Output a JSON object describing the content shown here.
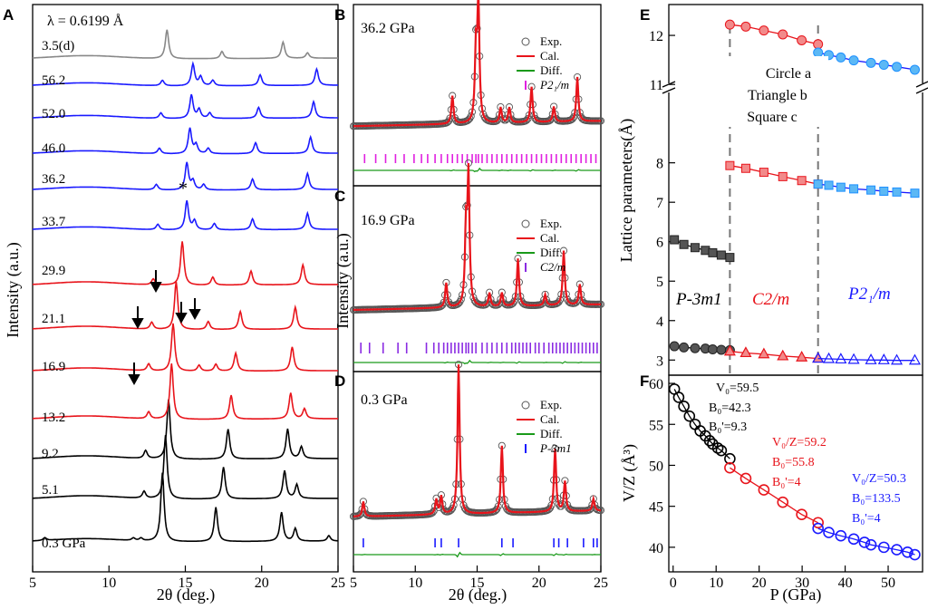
{
  "chart_data": [
    {
      "id": "A",
      "type": "line",
      "panel_label": "A",
      "title": "λ = 0.6199 Å",
      "xlabel": "2θ (deg.)",
      "ylabel": "Intensity (a.u.)",
      "xlim": [
        5,
        25
      ],
      "xticks": [
        5,
        10,
        15,
        20,
        25
      ],
      "series": [
        {
          "name": "0.3 GPa",
          "color": "#000000",
          "peaks": [
            [
              5.8,
              0.15
            ],
            [
              11.6,
              0.14
            ],
            [
              12.1,
              0.15
            ],
            [
              13.5,
              3.8
            ],
            [
              17.0,
              1.9
            ],
            [
              21.3,
              1.6
            ],
            [
              22.2,
              0.7
            ],
            [
              24.4,
              0.3
            ]
          ]
        },
        {
          "name": "5.1",
          "color": "#000000",
          "peaks": [
            [
              12.3,
              0.35
            ],
            [
              13.7,
              3.2
            ],
            [
              17.5,
              1.6
            ],
            [
              21.5,
              1.4
            ],
            [
              22.3,
              0.7
            ]
          ]
        },
        {
          "name": "9.2",
          "color": "#000000",
          "peaks": [
            [
              12.4,
              0.4
            ],
            [
              13.9,
              3.0
            ],
            [
              17.8,
              1.5
            ],
            [
              21.7,
              1.5
            ],
            [
              22.6,
              0.6
            ]
          ]
        },
        {
          "name": "13.2",
          "color": "#e8141b",
          "peaks": [
            [
              12.6,
              0.35
            ],
            [
              14.1,
              2.8
            ],
            [
              18.0,
              1.2
            ],
            [
              21.9,
              1.3
            ],
            [
              22.8,
              0.5
            ]
          ]
        },
        {
          "name": "16.9",
          "color": "#e8141b",
          "peaks": [
            [
              12.6,
              0.35
            ],
            [
              14.2,
              2.4
            ],
            [
              15.9,
              0.3
            ],
            [
              17.0,
              0.35
            ],
            [
              18.3,
              0.9
            ],
            [
              22.0,
              1.2
            ]
          ]
        },
        {
          "name": "21.1",
          "color": "#e8141b",
          "peaks": [
            [
              12.8,
              0.35
            ],
            [
              14.4,
              2.4
            ],
            [
              16.5,
              0.4
            ],
            [
              18.6,
              0.9
            ],
            [
              22.2,
              1.1
            ]
          ]
        },
        {
          "name": "29.9",
          "color": "#e8141b",
          "peaks": [
            [
              12.9,
              0.3
            ],
            [
              14.8,
              2.2
            ],
            [
              16.8,
              0.4
            ],
            [
              19.3,
              0.7
            ],
            [
              22.7,
              1.0
            ]
          ]
        },
        {
          "name": "33.7",
          "color": "#1a1aff",
          "peaks": [
            [
              13.2,
              0.3
            ],
            [
              15.1,
              1.6
            ],
            [
              15.6,
              0.5
            ],
            [
              16.9,
              0.35
            ],
            [
              19.4,
              0.6
            ],
            [
              23.0,
              0.9
            ]
          ]
        },
        {
          "name": "36.2",
          "color": "#1a1aff",
          "peaks": [
            [
              13.1,
              0.3
            ],
            [
              15.1,
              1.5
            ],
            [
              15.5,
              0.5
            ],
            [
              16.2,
              0.3
            ],
            [
              19.4,
              0.6
            ],
            [
              23.0,
              0.9
            ]
          ]
        },
        {
          "name": "46.0",
          "color": "#1a1aff",
          "peaks": [
            [
              13.3,
              0.3
            ],
            [
              15.3,
              1.4
            ],
            [
              15.7,
              0.5
            ],
            [
              16.5,
              0.3
            ],
            [
              19.6,
              0.6
            ],
            [
              23.2,
              0.9
            ]
          ]
        },
        {
          "name": "52.0",
          "color": "#1a1aff",
          "peaks": [
            [
              13.4,
              0.3
            ],
            [
              15.4,
              1.3
            ],
            [
              15.9,
              0.5
            ],
            [
              16.6,
              0.3
            ],
            [
              19.8,
              0.6
            ],
            [
              23.4,
              0.9
            ]
          ]
        },
        {
          "name": "56.2",
          "color": "#1a1aff",
          "peaks": [
            [
              13.5,
              0.3
            ],
            [
              15.5,
              1.2
            ],
            [
              16.0,
              0.5
            ],
            [
              16.8,
              0.3
            ],
            [
              19.9,
              0.6
            ],
            [
              23.6,
              0.9
            ]
          ]
        },
        {
          "name": "3.5(d)",
          "color": "#888888",
          "peaks": [
            [
              13.8,
              1.6
            ],
            [
              17.4,
              0.4
            ],
            [
              21.4,
              0.9
            ],
            [
              23.0,
              0.3
            ]
          ]
        }
      ],
      "annotations": [
        "*"
      ]
    },
    {
      "id": "B",
      "type": "scatter",
      "panel_label": "B",
      "pressure_label": "36.2 GPa",
      "xlim": [
        5,
        25
      ],
      "legend": [
        "Exp.",
        "Cal.",
        "Diff.",
        "P2₁/m"
      ],
      "legend_colors": [
        "#555555",
        "#e8141b",
        "#1a9a1a",
        "#e020e0"
      ],
      "peaks": [
        [
          13.0,
          0.22
        ],
        [
          14.9,
          0.55
        ],
        [
          15.1,
          0.95
        ],
        [
          16.9,
          0.12
        ],
        [
          17.6,
          0.12
        ],
        [
          19.4,
          0.28
        ],
        [
          21.2,
          0.12
        ],
        [
          23.1,
          0.35
        ]
      ],
      "tick_color": "#e020e0",
      "ticks": [
        5.9,
        6.8,
        7.6,
        8.4,
        9.1,
        9.9,
        10.5,
        11.0,
        11.6,
        12.1,
        12.6,
        13.0,
        13.4,
        13.8,
        14.2,
        14.6,
        14.9,
        15.1,
        15.4,
        15.8,
        16.2,
        16.6,
        17.0,
        17.4,
        17.8,
        18.2,
        18.6,
        19.0,
        19.4,
        19.8,
        20.2,
        20.6,
        21.0,
        21.4,
        21.8,
        22.2,
        22.6,
        23.0,
        23.4,
        23.8,
        24.2,
        24.6
      ]
    },
    {
      "id": "C",
      "type": "scatter",
      "panel_label": "C",
      "pressure_label": "16.9 GPa",
      "ylabel": "Intensity (a.u.)",
      "xlim": [
        5,
        25
      ],
      "legend": [
        "Exp.",
        "Cal.",
        "Diff.",
        "C2/m"
      ],
      "legend_colors": [
        "#555555",
        "#e8141b",
        "#1a9a1a",
        "#8a2be2"
      ],
      "peaks": [
        [
          12.5,
          0.18
        ],
        [
          14.1,
          0.55
        ],
        [
          14.3,
          0.95
        ],
        [
          16.0,
          0.1
        ],
        [
          17.0,
          0.1
        ],
        [
          18.3,
          0.35
        ],
        [
          20.5,
          0.08
        ],
        [
          22.0,
          0.4
        ],
        [
          23.3,
          0.15
        ]
      ],
      "tick_color": "#8a2be2",
      "ticks": [
        5.6,
        6.3,
        7.4,
        8.6,
        9.3,
        10.9,
        11.5,
        11.9,
        12.3,
        12.6,
        12.9,
        13.2,
        13.5,
        13.8,
        14.1,
        14.3,
        14.6,
        14.9,
        15.4,
        15.8,
        16.2,
        16.6,
        17.0,
        17.4,
        17.8,
        18.1,
        18.4,
        18.7,
        19.0,
        19.3,
        19.7,
        20.0,
        20.4,
        20.8,
        21.1,
        21.4,
        21.7,
        22.0,
        22.3,
        22.6,
        22.9,
        23.2,
        23.5,
        23.8,
        24.1,
        24.4,
        24.7
      ]
    },
    {
      "id": "D",
      "type": "scatter",
      "panel_label": "D",
      "pressure_label": "0.3 GPa",
      "xlabel": "2θ (deg.)",
      "xlim": [
        5,
        25
      ],
      "xticks": [
        5,
        10,
        15,
        20,
        25
      ],
      "legend": [
        "Exp.",
        "Cal.",
        "Diff.",
        "P-3m1"
      ],
      "legend_colors": [
        "#555555",
        "#e8141b",
        "#1a9a1a",
        "#1a1aff"
      ],
      "peaks": [
        [
          5.8,
          0.1
        ],
        [
          11.7,
          0.1
        ],
        [
          12.1,
          0.12
        ],
        [
          13.5,
          1.0
        ],
        [
          17.0,
          0.45
        ],
        [
          21.3,
          0.42
        ],
        [
          22.1,
          0.2
        ],
        [
          24.4,
          0.08
        ]
      ],
      "tick_color": "#1a1aff",
      "ticks": [
        5.8,
        11.6,
        12.1,
        13.5,
        17.0,
        17.9,
        21.2,
        21.6,
        22.3,
        23.6,
        24.4,
        24.7
      ]
    },
    {
      "id": "E",
      "type": "scatter",
      "panel_label": "E",
      "ylabel": "Lattice parameters(Å)",
      "ylim_lower": [
        2.8,
        9.6
      ],
      "ylim_upper": [
        10.8,
        12.5
      ],
      "yticks": [
        3,
        4,
        5,
        6,
        7,
        8,
        11,
        12
      ],
      "xlim": [
        -1,
        58
      ],
      "phase_labels": [
        "P-3m1",
        "C2/m",
        "P2₁/m"
      ],
      "legend_text": [
        "Circle a",
        "Triangle b",
        "Square c"
      ],
      "phase_boundaries": [
        13.2,
        33.7
      ],
      "series": [
        {
          "name": "P-3m1 a",
          "marker": "circle",
          "color": "#555555",
          "x": [
            0.3,
            2.5,
            5.1,
            7.5,
            9.2,
            11.2,
            13.2
          ],
          "y": [
            3.35,
            3.32,
            3.3,
            3.29,
            3.27,
            3.26,
            3.25
          ]
        },
        {
          "name": "P-3m1 c",
          "marker": "square",
          "color": "#555555",
          "x": [
            0.3,
            2.5,
            5.1,
            7.5,
            9.2,
            11.2,
            13.2
          ],
          "y": [
            6.05,
            5.93,
            5.85,
            5.78,
            5.72,
            5.66,
            5.6
          ]
        },
        {
          "name": "C2/m a",
          "marker": "circle",
          "color": "#e8141b",
          "x": [
            13.2,
            16.9,
            21.1,
            25.5,
            29.9,
            33.7
          ],
          "y": [
            12.22,
            12.18,
            12.1,
            12.02,
            11.9,
            11.82
          ]
        },
        {
          "name": "C2/m b",
          "marker": "triangle",
          "color": "#e8141b",
          "x": [
            13.2,
            16.9,
            21.1,
            25.5,
            29.9,
            33.7
          ],
          "y": [
            3.22,
            3.18,
            3.15,
            3.1,
            3.07,
            3.04
          ]
        },
        {
          "name": "C2/m c",
          "marker": "square",
          "color": "#e8141b",
          "x": [
            13.2,
            16.9,
            21.1,
            25.5,
            29.9,
            33.7
          ],
          "y": [
            7.93,
            7.86,
            7.76,
            7.65,
            7.55,
            7.46
          ]
        },
        {
          "name": "P2₁/m a",
          "marker": "circle",
          "color": "#1e90ff",
          "x": [
            33.7,
            36.2,
            39.0,
            42.0,
            46.0,
            49.0,
            52.0,
            56.2
          ],
          "y": [
            11.65,
            11.6,
            11.55,
            11.49,
            11.44,
            11.4,
            11.36,
            11.3
          ]
        },
        {
          "name": "P2₁/m b",
          "marker": "triangle",
          "color": "#1e90ff",
          "x": [
            33.7,
            36.2,
            39.0,
            42.0,
            46.0,
            49.0,
            52.0,
            56.2
          ],
          "y": [
            3.04,
            3.03,
            3.02,
            3.01,
            3.0,
            3.0,
            2.99,
            2.99
          ]
        },
        {
          "name": "P2₁/m c",
          "marker": "square",
          "color": "#1e90ff",
          "x": [
            33.7,
            36.2,
            39.0,
            42.0,
            46.0,
            49.0,
            52.0,
            56.2
          ],
          "y": [
            7.46,
            7.43,
            7.38,
            7.34,
            7.31,
            7.28,
            7.26,
            7.23
          ]
        }
      ]
    },
    {
      "id": "F",
      "type": "scatter",
      "panel_label": "F",
      "xlabel": "P (GPa)",
      "ylabel": "V/Z (Å³)",
      "xlim": [
        -1,
        58
      ],
      "ylim": [
        37,
        61
      ],
      "xticks": [
        0,
        10,
        20,
        30,
        40,
        50
      ],
      "yticks": [
        40,
        45,
        50,
        55,
        60
      ],
      "fits": [
        {
          "phase": "P-3m1",
          "color": "#000000",
          "V0": "V₀=59.5",
          "B0": "B₀=42.3",
          "B0p": "B₀'=9.3",
          "params": [
            59.5,
            42.3,
            9.3
          ],
          "range": [
            0,
            13.2
          ]
        },
        {
          "phase": "C2/m",
          "color": "#e8141b",
          "V0": "V₀/Z=59.2",
          "B0": "B₀=55.8",
          "B0p": "B₀'=4",
          "params": [
            59.2,
            55.8,
            4
          ],
          "range": [
            13.2,
            33.7
          ]
        },
        {
          "phase": "P2₁/m",
          "color": "#1a1aff",
          "V0": "V₀/Z=50.3",
          "B0": "B₀=133.5",
          "B0p": "B₀'=4",
          "params": [
            50.3,
            133.5,
            4
          ],
          "range": [
            33.7,
            57
          ]
        }
      ],
      "series": [
        {
          "name": "P-3m1",
          "color": "#000000",
          "x": [
            0.3,
            1.3,
            2.5,
            3.8,
            5.1,
            6.3,
            7.5,
            8.5,
            9.2,
            10.4,
            11.2,
            13.2
          ],
          "y": [
            59.3,
            58.3,
            57.2,
            56.0,
            55.0,
            54.2,
            53.6,
            53.0,
            52.6,
            52.1,
            51.8,
            50.8
          ]
        },
        {
          "name": "C2/m",
          "color": "#e8141b",
          "x": [
            13.2,
            16.9,
            21.1,
            25.5,
            29.9,
            33.7
          ],
          "y": [
            49.7,
            48.4,
            47.0,
            45.5,
            44.0,
            43.0
          ]
        },
        {
          "name": "P2₁/m",
          "color": "#1a1aff",
          "x": [
            33.7,
            36.2,
            39.0,
            42.0,
            44.5,
            46.0,
            49.0,
            52.0,
            54.5,
            56.2
          ],
          "y": [
            42.3,
            41.8,
            41.4,
            41.0,
            40.6,
            40.3,
            40.0,
            39.7,
            39.4,
            39.1
          ]
        }
      ]
    }
  ]
}
